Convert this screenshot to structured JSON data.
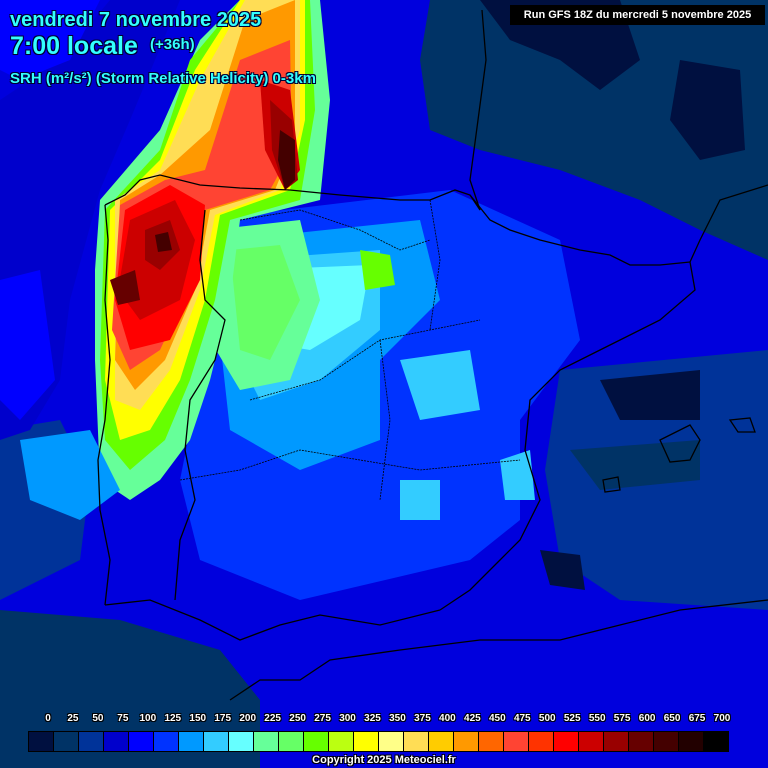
{
  "header": {
    "date": "vendredi 7 novembre 2025",
    "time": "7:00 locale",
    "lead_time": "(+36h)",
    "parameter": "SRH (m²/s²) (Storm Relative Helicity) 0-3km",
    "run_info": "Run GFS 18Z du mercredi 5 novembre 2025"
  },
  "legend": {
    "labels": [
      "0",
      "25",
      "50",
      "75",
      "100",
      "125",
      "150",
      "175",
      "200",
      "225",
      "250",
      "275",
      "300",
      "325",
      "350",
      "375",
      "400",
      "425",
      "450",
      "475",
      "500",
      "525",
      "550",
      "575",
      "600",
      "650",
      "675",
      "700"
    ],
    "colors": [
      "#001040",
      "#003366",
      "#003399",
      "#0000cc",
      "#0000ff",
      "#0033ff",
      "#0099ff",
      "#33ccff",
      "#66ffff",
      "#66ff99",
      "#66ff66",
      "#66ff00",
      "#bbff11",
      "#ffff00",
      "#ffff88",
      "#ffdd55",
      "#ffcc00",
      "#ff9900",
      "#ff6600",
      "#ff4433",
      "#ff3300",
      "#ff0000",
      "#cc0000",
      "#990000",
      "#660000",
      "#440000",
      "#220000",
      "#000000"
    ]
  },
  "footer": {
    "copyright": "Copyright 2025 Meteociel.fr"
  },
  "map": {
    "region": "Iberian Peninsula",
    "field_max_area": "Galicia / NW Spain & Bay of Biscay",
    "background_ocean_color": "#003366"
  }
}
